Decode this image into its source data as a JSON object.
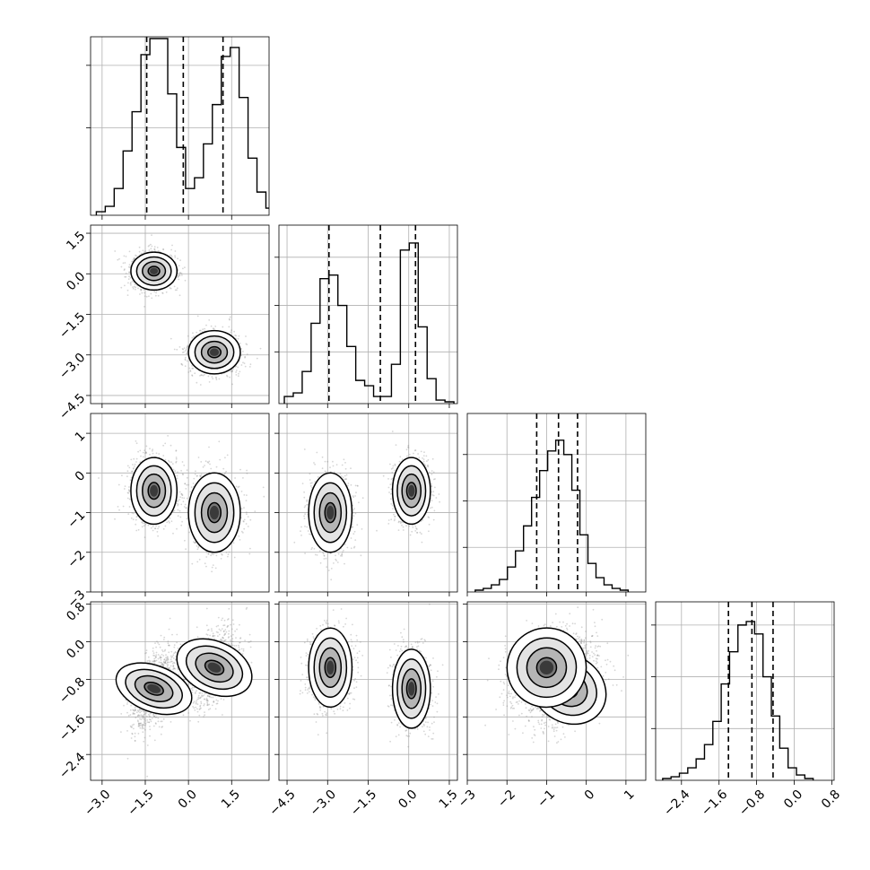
{
  "chart_data": {
    "type": "corner",
    "n_params": 4,
    "parameters": [
      {
        "range": [
          -3.4,
          2.8
        ],
        "ticks": [
          -3.0,
          -1.5,
          0.0,
          1.5
        ],
        "tick_labels": [
          "−3.0",
          "−1.5",
          "0.0",
          "1.5"
        ],
        "quantiles": [
          -1.45,
          -0.18,
          1.2
        ],
        "hist_bins": {
          "start": -3.2,
          "width": 0.31,
          "counts": [
            0.02,
            0.05,
            0.15,
            0.36,
            0.58,
            0.9,
            0.99,
            0.99,
            0.68,
            0.38,
            0.15,
            0.21,
            0.4,
            0.62,
            0.89,
            0.94,
            0.66,
            0.32,
            0.13,
            0.04,
            0.01
          ]
        },
        "hist_ticks": [
          0.49,
          0.84
        ]
      },
      {
        "range": [
          -4.8,
          1.8
        ],
        "ticks": [
          -4.5,
          -3.0,
          -1.5,
          0.0,
          1.5
        ],
        "tick_labels": [
          "−4.5",
          "−3.0",
          "−1.5",
          "0.0",
          "1.5"
        ],
        "quantiles": [
          -2.95,
          -1.05,
          0.25
        ],
        "hist_bins": {
          "start": -4.6,
          "width": 0.33,
          "counts": [
            0.04,
            0.06,
            0.18,
            0.45,
            0.7,
            0.72,
            0.55,
            0.32,
            0.13,
            0.1,
            0.04,
            0.04,
            0.22,
            0.86,
            0.9,
            0.43,
            0.14,
            0.02,
            0.01
          ]
        },
        "hist_ticks": [
          0.29,
          0.55,
          0.82
        ]
      },
      {
        "range": [
          -3.0,
          1.5
        ],
        "ticks": [
          -3,
          -2,
          -1,
          0,
          1
        ],
        "tick_labels": [
          "−3",
          "−2",
          "−1",
          "0",
          "1"
        ],
        "quantiles": [
          -1.25,
          -0.7,
          -0.22
        ],
        "hist_bins": {
          "start": -2.8,
          "width": 0.203,
          "counts": [
            0.01,
            0.02,
            0.04,
            0.07,
            0.14,
            0.23,
            0.37,
            0.53,
            0.68,
            0.79,
            0.85,
            0.77,
            0.57,
            0.32,
            0.16,
            0.08,
            0.04,
            0.02,
            0.01
          ]
        },
        "hist_ticks": [
          0.25,
          0.51,
          0.77
        ]
      },
      {
        "range": [
          -2.95,
          0.85
        ],
        "ticks": [
          -2.4,
          -1.6,
          -0.8,
          0.0,
          0.8
        ],
        "tick_labels": [
          "−2.4",
          "−1.6",
          "−0.8",
          "0.0",
          "0.8"
        ],
        "quantiles": [
          -1.4,
          -0.9,
          -0.45
        ],
        "hist_bins": {
          "start": -2.8,
          "width": 0.178,
          "counts": [
            0.01,
            0.02,
            0.04,
            0.07,
            0.12,
            0.2,
            0.33,
            0.54,
            0.72,
            0.87,
            0.89,
            0.82,
            0.58,
            0.36,
            0.18,
            0.07,
            0.03,
            0.01
          ]
        },
        "hist_ticks": [
          0.29,
          0.58,
          0.87
        ]
      }
    ],
    "modes": [
      {
        "weight": 0.5,
        "mean": [
          -1.2,
          0.1,
          -0.45,
          -1.0
        ],
        "sd": [
          0.4,
          0.35,
          0.42,
          0.42
        ]
      },
      {
        "weight": 0.5,
        "mean": [
          0.9,
          -2.9,
          -1.0,
          -0.55
        ],
        "sd": [
          0.45,
          0.4,
          0.5,
          0.42
        ]
      }
    ],
    "pair_correlation": {
      "1-0": 0.0,
      "2-0": 0.0,
      "2-1": 0.0,
      "3-0": 0.5,
      "3-1": 0.0,
      "3-2": 0.45
    },
    "sample_cloud": {
      "n_per_panel": 2000,
      "color": "#8a8a8a"
    },
    "contour_levels": [
      0.118,
      0.393,
      0.675,
      0.865
    ],
    "quantile_style": "dashed",
    "grid": true,
    "axis_labels": []
  }
}
